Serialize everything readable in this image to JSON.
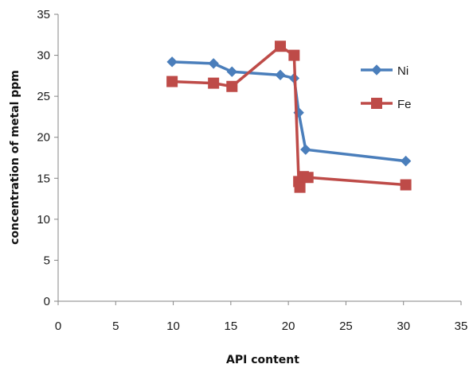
{
  "chart_data": {
    "type": "line",
    "title": "",
    "xlabel": "API content",
    "ylabel": "concentration of metal ppm",
    "xlim": [
      0,
      35
    ],
    "ylim": [
      0,
      35
    ],
    "xticks": [
      0,
      5,
      10,
      15,
      20,
      25,
      30,
      35
    ],
    "yticks": [
      0,
      5,
      10,
      15,
      20,
      25,
      30,
      35
    ],
    "grid": false,
    "legend_position": "right",
    "series": [
      {
        "name": "Ni",
        "color": "#4a7ebb",
        "marker": "diamond",
        "points": [
          [
            9.9,
            29.2
          ],
          [
            13.5,
            29.0
          ],
          [
            15.1,
            28.0
          ],
          [
            19.3,
            27.6
          ],
          [
            20.5,
            27.2
          ],
          [
            20.9,
            23.0
          ],
          [
            21.5,
            18.5
          ],
          [
            30.2,
            17.1
          ]
        ]
      },
      {
        "name": "Fe",
        "color": "#be4b48",
        "marker": "square",
        "points": [
          [
            9.9,
            26.8
          ],
          [
            13.5,
            26.6
          ],
          [
            15.1,
            26.2
          ],
          [
            19.3,
            31.1
          ],
          [
            20.5,
            30.0
          ],
          [
            20.9,
            14.6
          ],
          [
            21.0,
            13.9
          ],
          [
            21.3,
            15.2
          ],
          [
            21.7,
            15.1
          ],
          [
            30.2,
            14.2
          ]
        ]
      }
    ]
  }
}
